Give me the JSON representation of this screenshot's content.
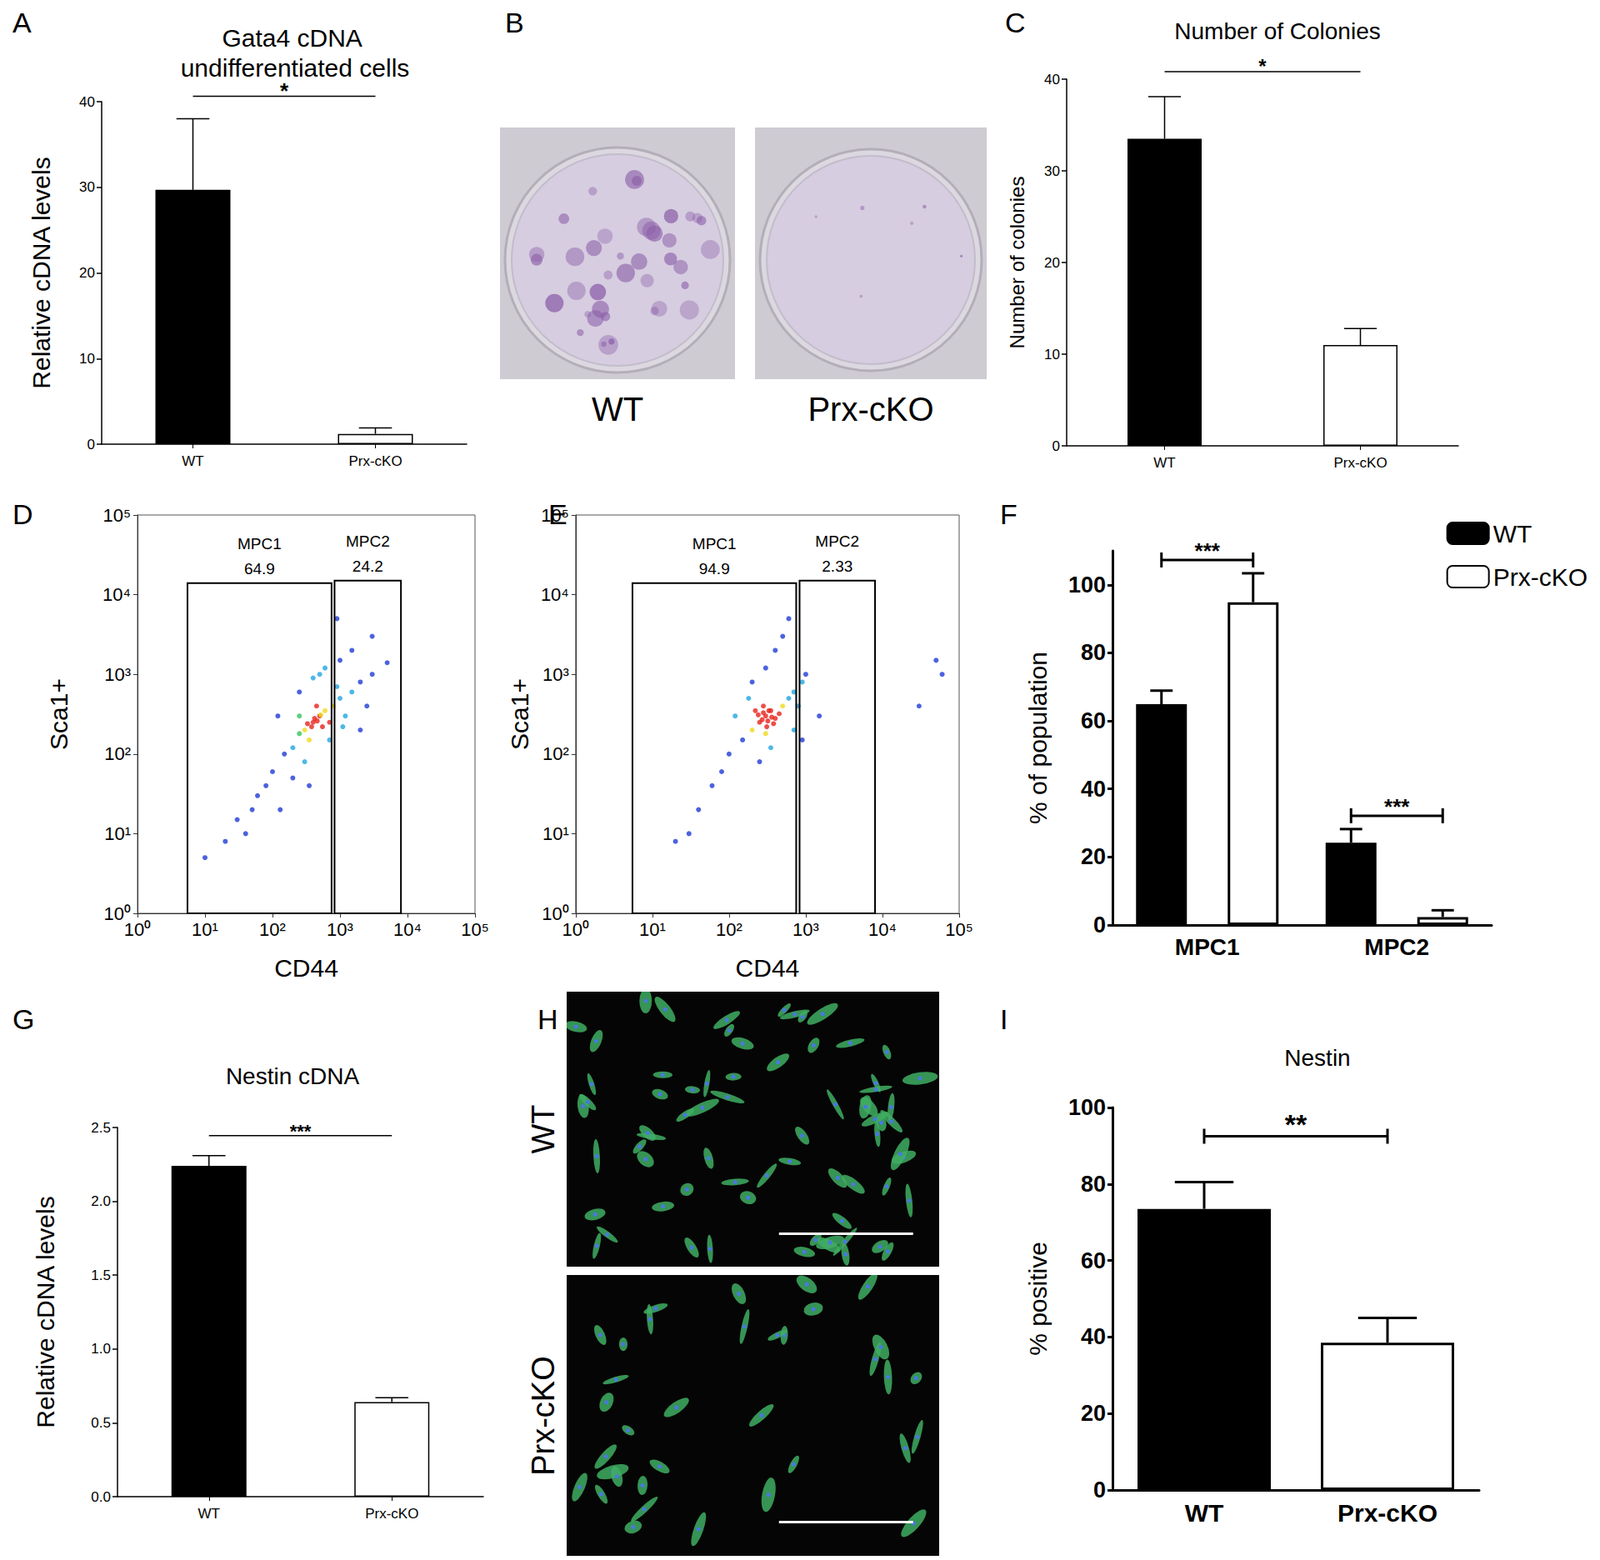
{
  "chart_data": [
    {
      "type": "bar",
      "annotations": {
        "panel": "A",
        "significance": [
          "*"
        ]
      },
      "title": "Gata4 cDNA undifferentiated cells",
      "y_label": "Relative cDNA levels",
      "categories": [
        "WT",
        "Prx-cKO"
      ],
      "values": [
        29.7,
        1.2
      ],
      "errors": [
        8.3,
        0.7
      ],
      "colors": [
        "#000000",
        "#ffffff"
      ],
      "ylim": [
        0,
        40
      ],
      "yticks": [
        0,
        10,
        20,
        30,
        40
      ]
    },
    {
      "type": "image",
      "annotations": {
        "panel": "B"
      },
      "categories": [
        "WT",
        "Prx-cKO"
      ]
    },
    {
      "type": "bar",
      "annotations": {
        "panel": "C",
        "significance": [
          "*"
        ]
      },
      "title": "Number of Colonies",
      "y_label": "Number of colonies",
      "categories": [
        "WT",
        "Prx-cKO"
      ],
      "values": [
        33.5,
        11
      ],
      "errors": [
        4.6,
        1.8
      ],
      "colors": [
        "#000000",
        "#ffffff"
      ],
      "ylim": [
        0,
        40
      ],
      "yticks": [
        0,
        10,
        20,
        30,
        40
      ]
    },
    {
      "type": "scatter",
      "annotations": {
        "panel": "D"
      },
      "x_label": "CD44",
      "y_label": "Sca1+",
      "log": true,
      "xlim": [
        1,
        100000
      ],
      "ylim": [
        1,
        100000
      ],
      "xticks": [
        {
          "value": 1,
          "label": "10⁰"
        },
        {
          "value": 10,
          "label": "10¹"
        },
        {
          "value": 100,
          "label": "10²"
        },
        {
          "value": 1000,
          "label": "10³"
        },
        {
          "value": 10000,
          "label": "10⁴"
        },
        {
          "value": 100000,
          "label": "10⁵"
        }
      ],
      "yticks": [
        {
          "value": 1,
          "label": "10⁰"
        },
        {
          "value": 10,
          "label": "10¹"
        },
        {
          "value": 100,
          "label": "10²"
        },
        {
          "value": 1000,
          "label": "10³"
        },
        {
          "value": 10000,
          "label": "10⁴"
        },
        {
          "value": 100000,
          "label": "10⁵"
        }
      ],
      "x": [
        400,
        300,
        500,
        600,
        250,
        800,
        1000,
        1200,
        700,
        350,
        450,
        550,
        900,
        1500,
        2000,
        200,
        150,
        100,
        80,
        60,
        50,
        30,
        120,
        250,
        400,
        600,
        1000,
        1500,
        3000,
        2500,
        300,
        200,
        40,
        20,
        700,
        1100,
        3000,
        5000,
        130,
        350,
        500,
        2000,
        10,
        900,
        250,
        420,
        380,
        460,
        520,
        330
      ],
      "values": [
        250,
        200,
        300,
        350,
        180,
        400,
        500,
        300,
        250,
        150,
        400,
        220,
        700,
        600,
        800,
        120,
        100,
        60,
        40,
        30,
        20,
        15,
        300,
        600,
        900,
        1200,
        1500,
        2000,
        1000,
        400,
        80,
        50,
        10,
        8,
        150,
        220,
        3000,
        1400,
        20,
        40,
        1000,
        200,
        5,
        5000,
        300,
        280,
        220,
        260,
        310,
        240
      ],
      "gates": [
        {
          "name": "MPC1",
          "value": 64.9,
          "x": [
            5.5,
            750
          ],
          "y": [
            1,
            14000
          ]
        },
        {
          "name": "MPC2",
          "value": 24.2,
          "x": [
            830,
            8000
          ],
          "y": [
            1,
            15000
          ]
        }
      ]
    },
    {
      "type": "scatter",
      "annotations": {
        "panel": "E"
      },
      "x_label": "CD44",
      "y_label": "Sca1+",
      "log": true,
      "xlim": [
        1,
        100000
      ],
      "ylim": [
        1,
        100000
      ],
      "xticks": [
        {
          "value": 1,
          "label": "10⁰"
        },
        {
          "value": 10,
          "label": "10¹"
        },
        {
          "value": 100,
          "label": "10²"
        },
        {
          "value": 1000,
          "label": "10³"
        },
        {
          "value": 10000,
          "label": "10⁴"
        },
        {
          "value": 100000,
          "label": "10⁵"
        }
      ],
      "yticks": [
        {
          "value": 1,
          "label": "10⁰"
        },
        {
          "value": 10,
          "label": "10¹"
        },
        {
          "value": 100,
          "label": "10²"
        },
        {
          "value": 1000,
          "label": "10³"
        },
        {
          "value": 10000,
          "label": "10⁴"
        },
        {
          "value": 100000,
          "label": "10⁵"
        }
      ],
      "x": [
        300,
        250,
        350,
        400,
        200,
        500,
        600,
        300,
        450,
        280,
        150,
        100,
        80,
        60,
        40,
        30,
        700,
        800,
        900,
        200,
        300,
        400,
        500,
        600,
        120,
        180,
        1000,
        700,
        350,
        250,
        20,
        50000,
        30000,
        60000,
        1500,
        900,
        320,
        280,
        360,
        240,
        330,
        380,
        270,
        310,
        220
      ],
      "values": [
        300,
        250,
        350,
        280,
        200,
        400,
        500,
        180,
        320,
        400,
        150,
        100,
        60,
        40,
        20,
        10,
        600,
        400,
        800,
        800,
        1200,
        2000,
        3000,
        5000,
        300,
        500,
        1000,
        200,
        120,
        80,
        8,
        1500,
        400,
        1000,
        300,
        150,
        260,
        330,
        290,
        310,
        350,
        240,
        270,
        220,
        350
      ],
      "gates": [
        {
          "name": "MPC1",
          "value": 94.9,
          "x": [
            5.5,
            750
          ],
          "y": [
            1,
            14000
          ]
        },
        {
          "name": "MPC2",
          "value": 2.33,
          "x": [
            830,
            8000
          ],
          "y": [
            1,
            15000
          ]
        }
      ]
    },
    {
      "type": "bar",
      "annotations": {
        "panel": "F",
        "significance": [
          "***",
          "***"
        ]
      },
      "y_label": "% of population",
      "categories": [
        "MPC1",
        "MPC2"
      ],
      "series": [
        {
          "name": "WT",
          "color": "#000000",
          "values": [
            64.9,
            24.2
          ],
          "errors": [
            4,
            4
          ]
        },
        {
          "name": "Prx-cKO",
          "color": "#ffffff",
          "values": [
            94.9,
            2.33
          ],
          "errors": [
            8.5,
            2
          ]
        }
      ],
      "legend": "top-right",
      "ylim": [
        0,
        110
      ],
      "yticks": [
        0,
        20,
        40,
        60,
        80,
        100
      ]
    },
    {
      "type": "bar",
      "annotations": {
        "panel": "G",
        "significance": [
          "***"
        ]
      },
      "title": "Nestin cDNA",
      "y_label": "Relative cDNA levels",
      "categories": [
        "WT",
        "Prx-cKO"
      ],
      "values": [
        2.24,
        0.64
      ],
      "errors": [
        0.07,
        0.03
      ],
      "colors": [
        "#000000",
        "#ffffff"
      ],
      "ylim": [
        0,
        2.5
      ],
      "yticks": [
        {
          "value": 0,
          "label": "0.0"
        },
        0.5,
        {
          "value": 1,
          "label": "1.0"
        },
        1.5,
        {
          "value": 2,
          "label": "2.0"
        },
        2.5
      ]
    },
    {
      "type": "image",
      "annotations": {
        "panel": "H"
      },
      "categories": [
        "WT",
        "Prx-cKO"
      ]
    },
    {
      "type": "bar",
      "annotations": {
        "panel": "I",
        "significance": [
          "**"
        ]
      },
      "title": "Nestin",
      "y_label": "% positive",
      "categories": [
        "WT",
        "Prx-cKO"
      ],
      "values": [
        73.5,
        38.5
      ],
      "errors": [
        7,
        6.5
      ],
      "colors": [
        "#000000",
        "#ffffff"
      ],
      "ylim": [
        0,
        100
      ],
      "yticks": [
        0,
        20,
        40,
        60,
        80,
        100
      ]
    }
  ]
}
